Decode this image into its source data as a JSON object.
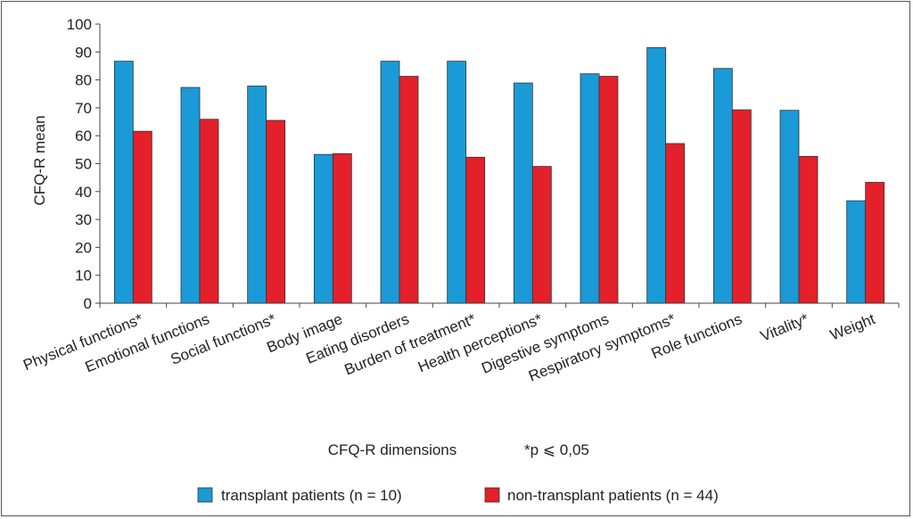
{
  "chart_data": {
    "type": "bar",
    "ylabel": "CFQ-R mean",
    "xlabel": "CFQ-R dimensions",
    "note": "*p ⩽ 0,05",
    "ylim": [
      0,
      100
    ],
    "yticks": [
      0,
      10,
      20,
      30,
      40,
      50,
      60,
      70,
      80,
      90,
      100
    ],
    "grid": false,
    "legend_position": "bottom",
    "categories": [
      "Physical functions*",
      "Emotional functions",
      "Social functions*",
      "Body image",
      "Eating disorders",
      "Burden of treatment*",
      "Health perceptions*",
      "Digestive symptoms",
      "Respiratory symptoms*",
      "Role functions",
      "Vitality*",
      "Weight"
    ],
    "series": [
      {
        "name": "transplant patients (n = 10)",
        "color": "#1a9ad6",
        "values": [
          86.7,
          77.3,
          77.8,
          53.3,
          86.7,
          86.7,
          78.9,
          82.2,
          91.6,
          84.1,
          69.1,
          36.7
        ]
      },
      {
        "name": "non-transplant patients (n = 44)",
        "color": "#e4202a",
        "values": [
          61.6,
          65.9,
          65.5,
          53.6,
          81.3,
          52.3,
          49.0,
          81.3,
          57.2,
          69.3,
          52.6,
          43.3
        ]
      }
    ]
  }
}
